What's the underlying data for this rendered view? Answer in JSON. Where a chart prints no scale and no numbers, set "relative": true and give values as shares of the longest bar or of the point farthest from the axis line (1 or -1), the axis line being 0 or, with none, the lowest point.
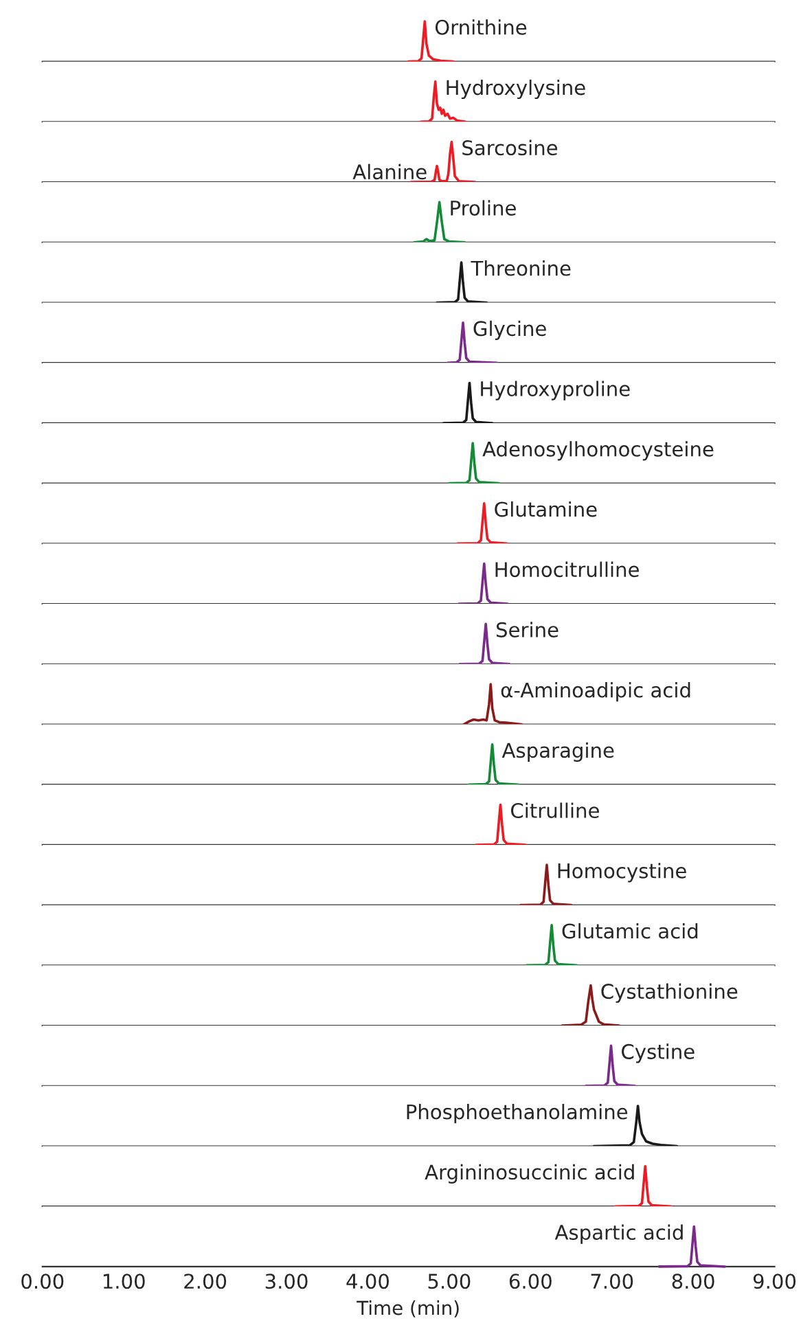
{
  "chart_data": [
    {
      "type": "line",
      "relative": true,
      "xlim": [
        0,
        9
      ],
      "tick_labels": false,
      "series": [
        {
          "color": "#ed1c24",
          "x": [
            4.5,
            4.62,
            4.66,
            4.68,
            4.7,
            4.72,
            4.75,
            4.8,
            4.9,
            5.05
          ],
          "values": [
            0,
            0.01,
            0.08,
            0.55,
            1,
            0.45,
            0.15,
            0.06,
            0.02,
            0
          ]
        }
      ],
      "annotations": [
        {
          "text": "Ornithine",
          "x": 4.7,
          "y": 1
        }
      ]
    },
    {
      "type": "line",
      "relative": true,
      "xlim": [
        0,
        9
      ],
      "tick_labels": false,
      "series": [
        {
          "color": "#ed1c24",
          "x": [
            4.65,
            4.75,
            4.79,
            4.81,
            4.83,
            4.85,
            4.87,
            4.89,
            4.91,
            4.93,
            4.95,
            4.98,
            5.01,
            5.05,
            5.1,
            5.2
          ],
          "values": [
            0,
            0.01,
            0.08,
            0.6,
            1,
            0.45,
            0.3,
            0.35,
            0.2,
            0.3,
            0.15,
            0.2,
            0.08,
            0.1,
            0.03,
            0
          ]
        }
      ],
      "annotations": [
        {
          "text": "Hydroxylysine",
          "x": 4.83,
          "y": 1
        }
      ]
    },
    {
      "type": "line",
      "relative": true,
      "xlim": [
        0,
        9
      ],
      "tick_labels": false,
      "series": [
        {
          "color": "#ed1c24",
          "x": [
            4.53,
            4.78,
            4.82,
            4.84,
            4.85,
            4.86,
            4.88,
            4.92,
            4.97,
            4.99,
            5.01,
            5.03,
            5.05,
            5.07,
            5.12,
            5.32
          ],
          "values": [
            0,
            0.01,
            0.05,
            0.3,
            0.4,
            0.3,
            0.05,
            0.02,
            0.03,
            0.2,
            0.7,
            1,
            0.6,
            0.15,
            0.02,
            0
          ]
        }
      ],
      "annotations": [
        {
          "text": "Alanine",
          "x": 4.85,
          "y": 0.4
        },
        {
          "text": "Sarcosine",
          "x": 5.03,
          "y": 1
        }
      ]
    },
    {
      "type": "line",
      "relative": true,
      "xlim": [
        0,
        9
      ],
      "tick_labels": false,
      "series": [
        {
          "color": "#138a36",
          "x": [
            4.57,
            4.68,
            4.72,
            4.76,
            4.82,
            4.85,
            4.88,
            4.91,
            4.94,
            5.0,
            5.19
          ],
          "values": [
            0,
            0.02,
            0.08,
            0.03,
            0.05,
            0.5,
            1,
            0.5,
            0.08,
            0.02,
            0
          ]
        }
      ],
      "annotations": [
        {
          "text": "Proline",
          "x": 4.88,
          "y": 1
        }
      ]
    },
    {
      "type": "line",
      "relative": true,
      "xlim": [
        0,
        9
      ],
      "tick_labels": false,
      "series": [
        {
          "color": "#1a1a1a",
          "x": [
            4.85,
            5.07,
            5.11,
            5.13,
            5.15,
            5.17,
            5.19,
            5.23,
            5.46
          ],
          "values": [
            0,
            0.01,
            0.08,
            0.55,
            1,
            0.5,
            0.12,
            0.03,
            0
          ]
        }
      ],
      "annotations": [
        {
          "text": "Threonine",
          "x": 5.15,
          "y": 1
        }
      ]
    },
    {
      "type": "line",
      "relative": true,
      "xlim": [
        0,
        9
      ],
      "tick_labels": false,
      "series": [
        {
          "color": "#7b2a8c",
          "x": [
            4.98,
            5.09,
            5.13,
            5.15,
            5.17,
            5.19,
            5.21,
            5.25,
            5.59
          ],
          "values": [
            0,
            0.01,
            0.08,
            0.55,
            1,
            0.5,
            0.12,
            0.03,
            0
          ]
        }
      ],
      "annotations": [
        {
          "text": "Glycine",
          "x": 5.17,
          "y": 1
        }
      ]
    },
    {
      "type": "line",
      "relative": true,
      "xlim": [
        0,
        9
      ],
      "tick_labels": false,
      "series": [
        {
          "color": "#1a1a1a",
          "x": [
            4.93,
            5.17,
            5.21,
            5.23,
            5.25,
            5.27,
            5.29,
            5.33,
            5.53
          ],
          "values": [
            0,
            0.01,
            0.08,
            0.55,
            1,
            0.5,
            0.12,
            0.03,
            0
          ]
        }
      ],
      "annotations": [
        {
          "text": "Hydroxyproline",
          "x": 5.25,
          "y": 1
        }
      ]
    },
    {
      "type": "line",
      "relative": true,
      "xlim": [
        0,
        9
      ],
      "tick_labels": false,
      "series": [
        {
          "color": "#138a36",
          "x": [
            5.0,
            5.21,
            5.25,
            5.27,
            5.29,
            5.31,
            5.33,
            5.37,
            5.61
          ],
          "values": [
            0,
            0.01,
            0.08,
            0.55,
            1,
            0.5,
            0.12,
            0.03,
            0
          ]
        }
      ],
      "annotations": [
        {
          "text": "Adenosylhomocysteine",
          "x": 5.29,
          "y": 1
        }
      ]
    },
    {
      "type": "line",
      "relative": true,
      "xlim": [
        0,
        9
      ],
      "tick_labels": false,
      "series": [
        {
          "color": "#ed1c24",
          "x": [
            5.1,
            5.35,
            5.39,
            5.41,
            5.43,
            5.45,
            5.47,
            5.51,
            5.71
          ],
          "values": [
            0,
            0.01,
            0.08,
            0.55,
            1,
            0.5,
            0.12,
            0.03,
            0
          ]
        }
      ],
      "annotations": [
        {
          "text": "Glutamine",
          "x": 5.43,
          "y": 1
        }
      ]
    },
    {
      "type": "line",
      "relative": true,
      "xlim": [
        0,
        9
      ],
      "tick_labels": false,
      "series": [
        {
          "color": "#7b2a8c",
          "x": [
            5.12,
            5.35,
            5.39,
            5.41,
            5.43,
            5.45,
            5.47,
            5.51,
            5.72
          ],
          "values": [
            0,
            0.01,
            0.08,
            0.55,
            1,
            0.5,
            0.12,
            0.03,
            0
          ]
        }
      ],
      "annotations": [
        {
          "text": "Homocitrulline",
          "x": 5.43,
          "y": 1
        }
      ]
    },
    {
      "type": "line",
      "relative": true,
      "xlim": [
        0,
        9
      ],
      "tick_labels": false,
      "series": [
        {
          "color": "#7b2a8c",
          "x": [
            5.13,
            5.37,
            5.41,
            5.43,
            5.45,
            5.47,
            5.49,
            5.53,
            5.74
          ],
          "values": [
            0,
            0.01,
            0.08,
            0.55,
            1,
            0.5,
            0.12,
            0.03,
            0
          ]
        }
      ],
      "annotations": [
        {
          "text": "Serine",
          "x": 5.45,
          "y": 1
        }
      ]
    },
    {
      "type": "line",
      "relative": true,
      "xlim": [
        0,
        9
      ],
      "tick_labels": false,
      "series": [
        {
          "color": "#8b1a1a",
          "x": [
            5.18,
            5.25,
            5.3,
            5.36,
            5.42,
            5.46,
            5.49,
            5.51,
            5.53,
            5.56,
            5.62,
            5.7,
            5.89
          ],
          "values": [
            0,
            0.08,
            0.12,
            0.1,
            0.12,
            0.1,
            0.5,
            1,
            0.4,
            0.1,
            0.05,
            0.04,
            0
          ]
        }
      ],
      "annotations": [
        {
          "text": "α-Aminoadipic acid",
          "x": 5.51,
          "y": 1
        }
      ]
    },
    {
      "type": "line",
      "relative": true,
      "xlim": [
        0,
        9
      ],
      "tick_labels": false,
      "series": [
        {
          "color": "#138a36",
          "x": [
            5.24,
            5.45,
            5.49,
            5.51,
            5.53,
            5.55,
            5.57,
            5.61,
            5.85
          ],
          "values": [
            0,
            0.01,
            0.08,
            0.55,
            1,
            0.5,
            0.12,
            0.03,
            0
          ]
        }
      ],
      "annotations": [
        {
          "text": "Asparagine",
          "x": 5.53,
          "y": 1
        }
      ]
    },
    {
      "type": "line",
      "relative": true,
      "xlim": [
        0,
        9
      ],
      "tick_labels": false,
      "series": [
        {
          "color": "#ed1c24",
          "x": [
            5.33,
            5.55,
            5.59,
            5.61,
            5.63,
            5.65,
            5.67,
            5.71,
            5.94
          ],
          "values": [
            0,
            0.01,
            0.08,
            0.55,
            1,
            0.5,
            0.12,
            0.03,
            0
          ]
        }
      ],
      "annotations": [
        {
          "text": "Citrulline",
          "x": 5.63,
          "y": 1
        }
      ]
    },
    {
      "type": "line",
      "relative": true,
      "xlim": [
        0,
        9
      ],
      "tick_labels": false,
      "series": [
        {
          "color": "#8b1a1a",
          "x": [
            5.88,
            6.12,
            6.16,
            6.18,
            6.2,
            6.22,
            6.24,
            6.28,
            6.5
          ],
          "values": [
            0,
            0.01,
            0.08,
            0.55,
            1,
            0.5,
            0.12,
            0.03,
            0
          ]
        }
      ],
      "annotations": [
        {
          "text": "Homocystine",
          "x": 6.2,
          "y": 1
        }
      ]
    },
    {
      "type": "line",
      "relative": true,
      "xlim": [
        0,
        9
      ],
      "tick_labels": false,
      "series": [
        {
          "color": "#138a36",
          "x": [
            5.95,
            6.18,
            6.22,
            6.24,
            6.26,
            6.28,
            6.3,
            6.34,
            6.57
          ],
          "values": [
            0,
            0.01,
            0.08,
            0.55,
            1,
            0.5,
            0.12,
            0.03,
            0
          ]
        }
      ],
      "annotations": [
        {
          "text": "Glutamic acid",
          "x": 6.26,
          "y": 1
        }
      ]
    },
    {
      "type": "line",
      "relative": true,
      "xlim": [
        0,
        9
      ],
      "tick_labels": false,
      "series": [
        {
          "color": "#8b1a1a",
          "x": [
            6.39,
            6.62,
            6.68,
            6.71,
            6.74,
            6.76,
            6.78,
            6.8,
            6.84,
            6.9,
            7.09
          ],
          "values": [
            0,
            0.02,
            0.1,
            0.6,
            1,
            0.65,
            0.4,
            0.3,
            0.1,
            0.03,
            0
          ]
        }
      ],
      "annotations": [
        {
          "text": "Cystathionine",
          "x": 6.74,
          "y": 1
        }
      ]
    },
    {
      "type": "line",
      "relative": true,
      "xlim": [
        0,
        9
      ],
      "tick_labels": false,
      "series": [
        {
          "color": "#7b2a8c",
          "x": [
            6.68,
            6.91,
            6.95,
            6.97,
            6.99,
            7.01,
            7.03,
            7.07,
            7.28
          ],
          "values": [
            0,
            0.01,
            0.08,
            0.55,
            1,
            0.5,
            0.12,
            0.03,
            0
          ]
        }
      ],
      "annotations": [
        {
          "text": "Cystine",
          "x": 6.99,
          "y": 1
        }
      ]
    },
    {
      "type": "line",
      "relative": true,
      "xlim": [
        0,
        9
      ],
      "tick_labels": false,
      "series": [
        {
          "color": "#1a1a1a",
          "x": [
            6.78,
            7.22,
            7.27,
            7.3,
            7.32,
            7.34,
            7.37,
            7.42,
            7.5,
            7.6,
            7.8
          ],
          "values": [
            0,
            0.02,
            0.1,
            0.6,
            1,
            0.6,
            0.3,
            0.12,
            0.06,
            0.03,
            0
          ]
        }
      ],
      "annotations": [
        {
          "text": "Phosphoethanolamine",
          "x": 7.32,
          "y": 1
        }
      ]
    },
    {
      "type": "line",
      "relative": true,
      "xlim": [
        0,
        9
      ],
      "tick_labels": false,
      "series": [
        {
          "color": "#ed1c24",
          "x": [
            7.04,
            7.33,
            7.37,
            7.39,
            7.41,
            7.43,
            7.45,
            7.49,
            7.73
          ],
          "values": [
            0,
            0.01,
            0.08,
            0.55,
            1,
            0.5,
            0.12,
            0.03,
            0
          ]
        }
      ],
      "annotations": [
        {
          "text": "Argininosuccinic acid",
          "x": 7.41,
          "y": 1
        }
      ]
    },
    {
      "type": "line",
      "relative": true,
      "xlim": [
        0,
        9
      ],
      "tick_labels": "x",
      "xlabel": "Time (min)",
      "xticks": [
        {
          "value": 0,
          "label": "0.00"
        },
        {
          "value": 1,
          "label": "1.00"
        },
        {
          "value": 2,
          "label": "2.00"
        },
        {
          "value": 3,
          "label": "3.00"
        },
        {
          "value": 4,
          "label": "4.00"
        },
        {
          "value": 5,
          "label": "5.00"
        },
        {
          "value": 6,
          "label": "6.00"
        },
        {
          "value": 7,
          "label": "7.00"
        },
        {
          "value": 8,
          "label": "8.00"
        },
        {
          "value": 9,
          "label": "9.00"
        }
      ],
      "series": [
        {
          "color": "#7b2a8c",
          "x": [
            7.58,
            7.93,
            7.97,
            7.99,
            8.01,
            8.03,
            8.05,
            8.09,
            8.39
          ],
          "values": [
            0,
            0.01,
            0.08,
            0.55,
            1,
            0.5,
            0.12,
            0.03,
            0
          ]
        }
      ],
      "annotations": [
        {
          "text": "Aspartic acid",
          "x": 8.01,
          "y": 1
        }
      ]
    }
  ]
}
